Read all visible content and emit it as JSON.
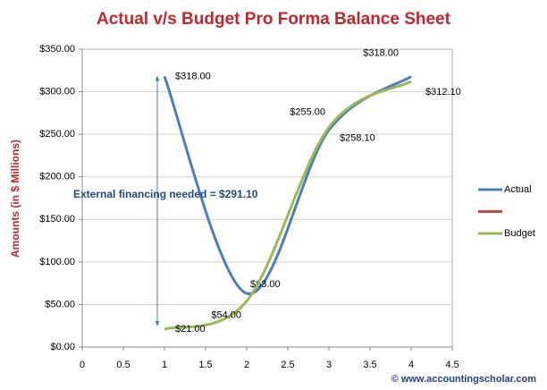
{
  "chart_data": {
    "type": "line",
    "title": "Actual v/s Budget Pro Forma Balance Sheet",
    "y_label": "Amounts (in $ Millions)",
    "annotation": "External financing needed = $291.10",
    "footer": "© www.accountingscholar.com",
    "x": [
      1,
      2,
      3,
      4
    ],
    "series": [
      {
        "name": "Actual",
        "color": "#4a7ebb",
        "values": [
          318,
          63,
          255,
          318
        ],
        "value_labels": [
          "$318.00",
          "$63.00",
          "$255.00",
          "$318.00"
        ]
      },
      {
        "color": "#be4b48",
        "values": [
          null,
          null,
          null,
          null
        ]
      },
      {
        "name": "Budget",
        "color": "#98b954",
        "values": [
          21,
          54,
          258.1,
          312.1
        ],
        "value_labels": [
          "$21.00",
          "$54.00",
          "$258.10",
          "$312.10"
        ]
      }
    ],
    "xlim": [
      0,
      4.5
    ],
    "xticks": [
      0,
      0.5,
      1,
      1.5,
      2,
      2.5,
      3,
      3.5,
      4,
      4.5
    ],
    "ylim": [
      0,
      350
    ],
    "yticks": [
      {
        "value": 0,
        "label": "$0.00"
      },
      {
        "value": 50,
        "label": "$50.00"
      },
      {
        "value": 100,
        "label": "$100.00"
      },
      {
        "value": 150,
        "label": "$150.00"
      },
      {
        "value": 200,
        "label": "$200.00"
      },
      {
        "value": 250,
        "label": "$250.00"
      },
      {
        "value": 300,
        "label": "$300.00"
      },
      {
        "value": 350,
        "label": "$350.00"
      }
    ],
    "grid": true,
    "smooth": true,
    "legend": "right"
  }
}
